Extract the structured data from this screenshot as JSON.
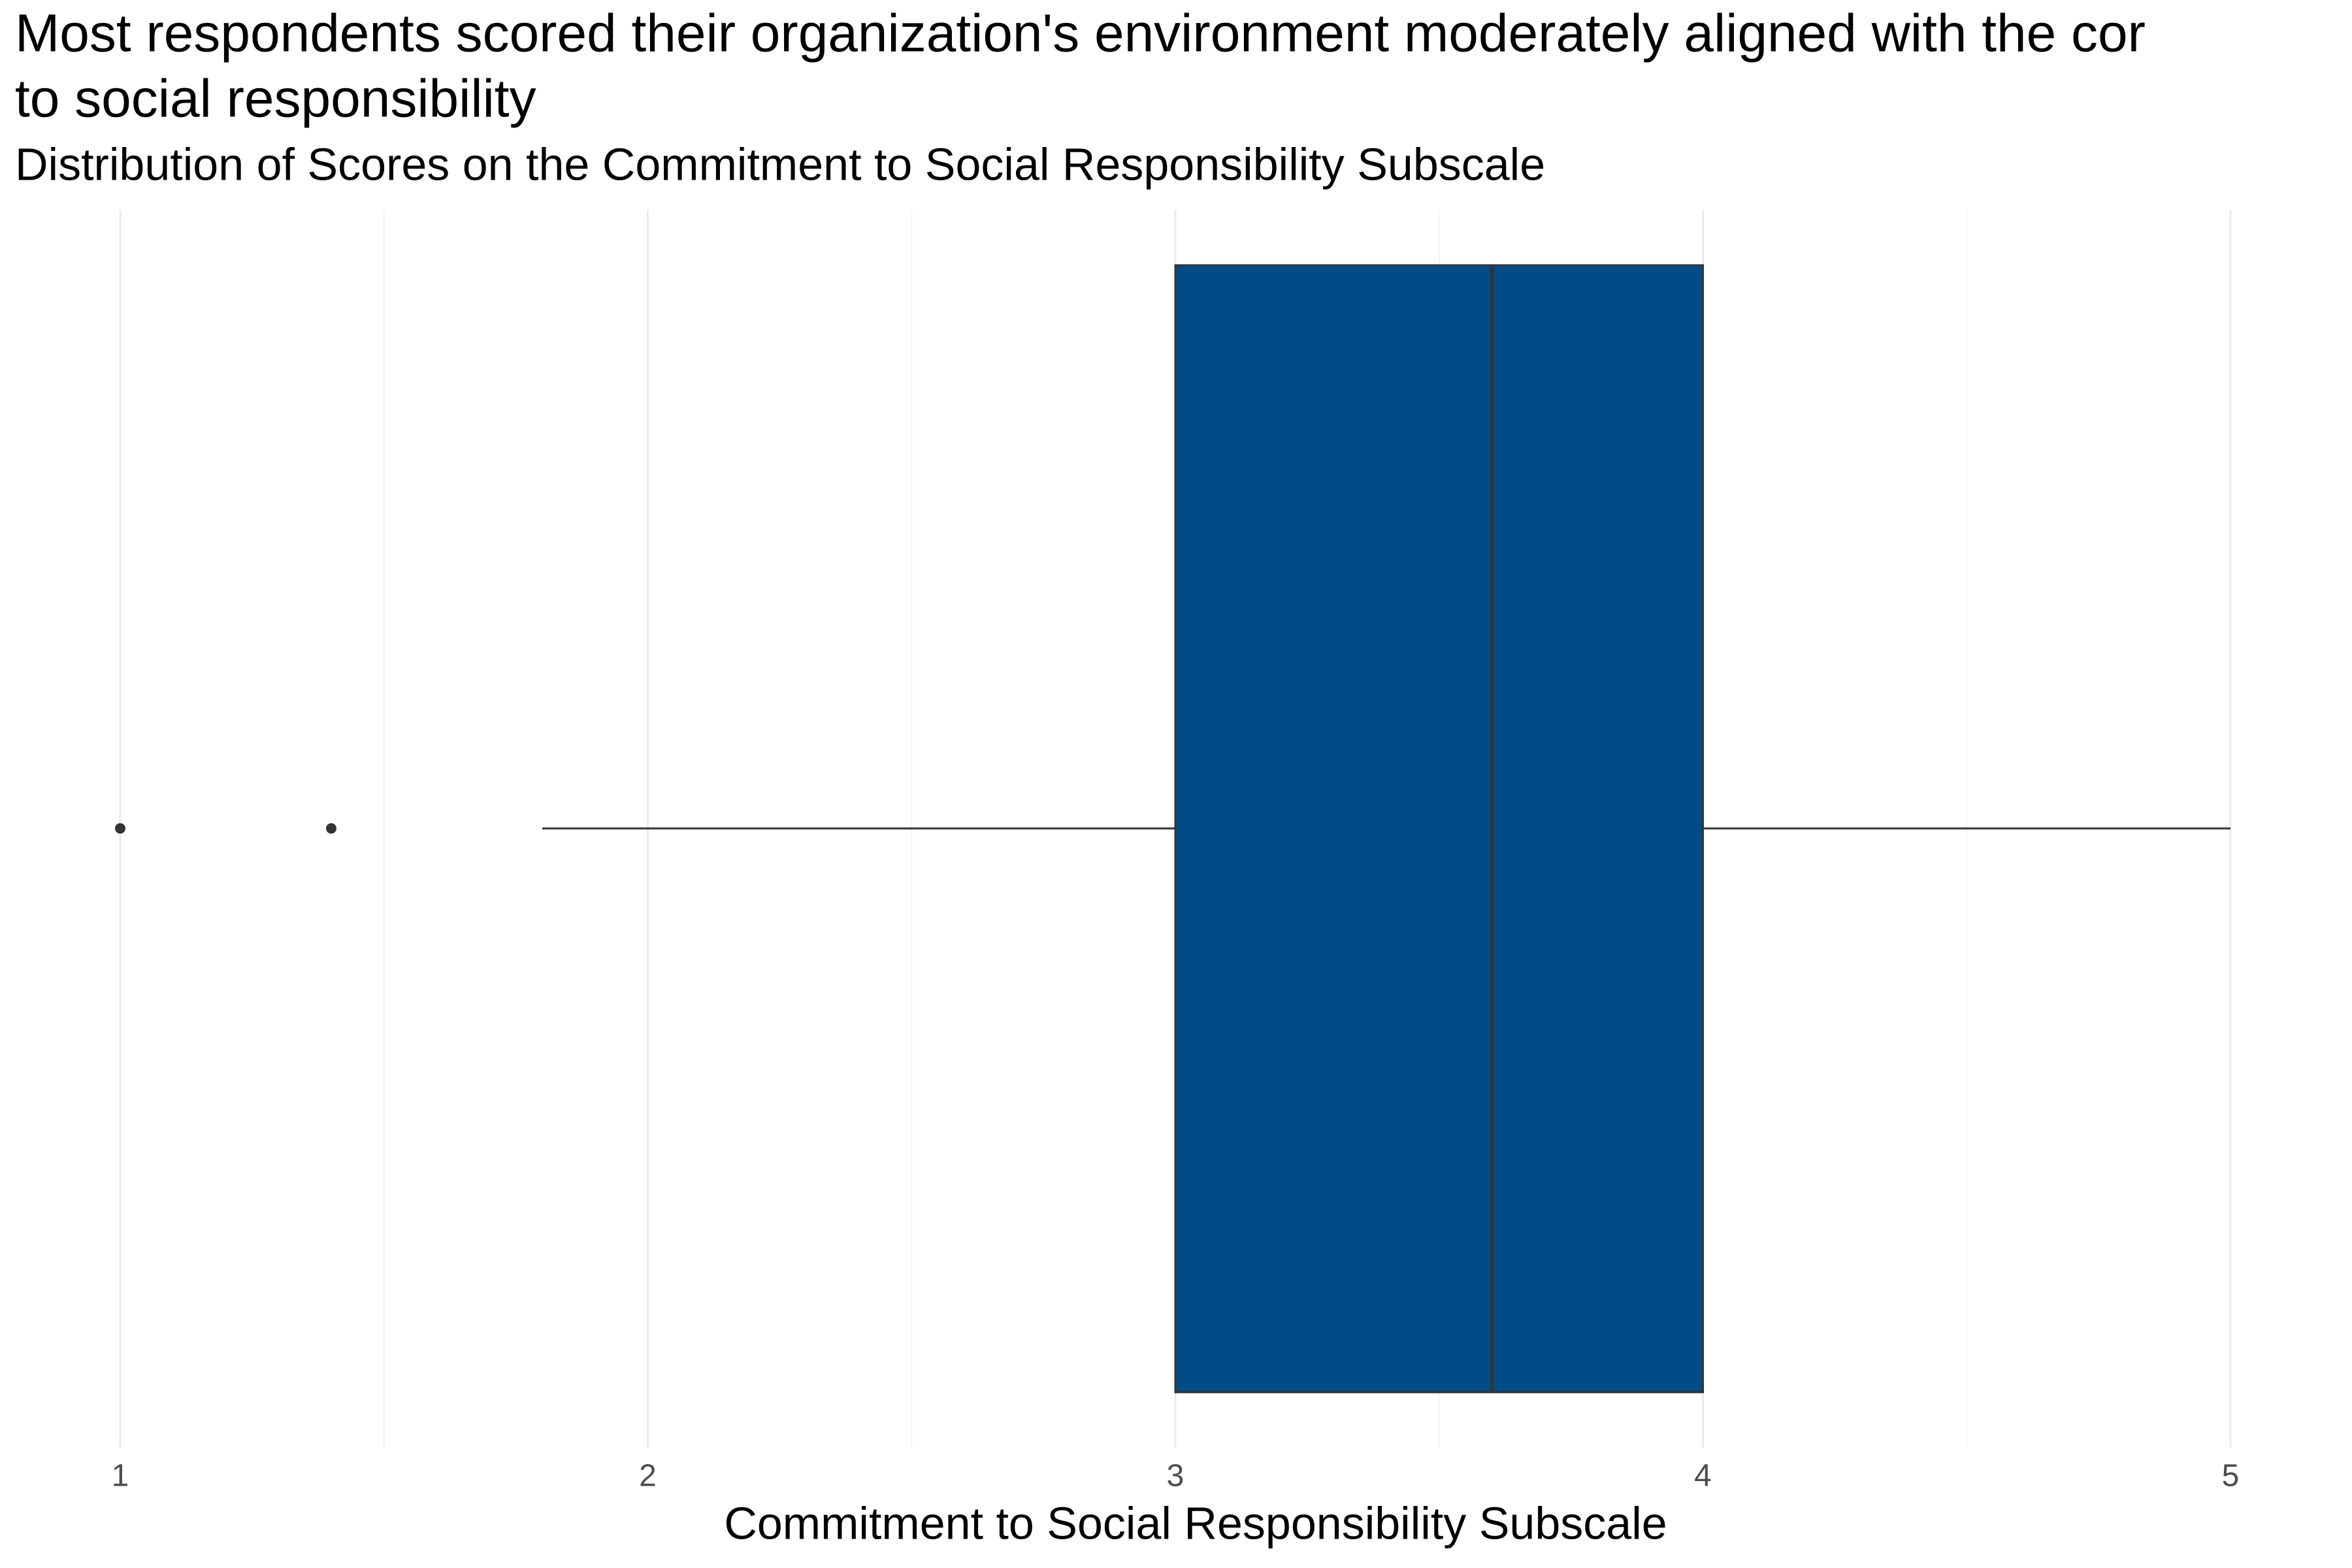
{
  "chart_data": {
    "type": "boxplot",
    "title_lines": [
      "Most respondents scored their organization's environment moderately aligned with the cor",
      "to social responsibility"
    ],
    "subtitle": "Distribution of Scores on the Commitment to Social Responsibility Subscale",
    "x_label": "Commitment to Social Responsibility Subscale",
    "box": {
      "whisker_low": 1.8,
      "q1": 3,
      "median": 3.6,
      "q3": 4,
      "whisker_high": 5,
      "outliers": [
        1,
        1.4
      ]
    },
    "color": "#004c87",
    "xlim": [
      1,
      5
    ],
    "xticks": [
      1,
      2,
      3,
      4,
      5
    ],
    "grid": true
  }
}
